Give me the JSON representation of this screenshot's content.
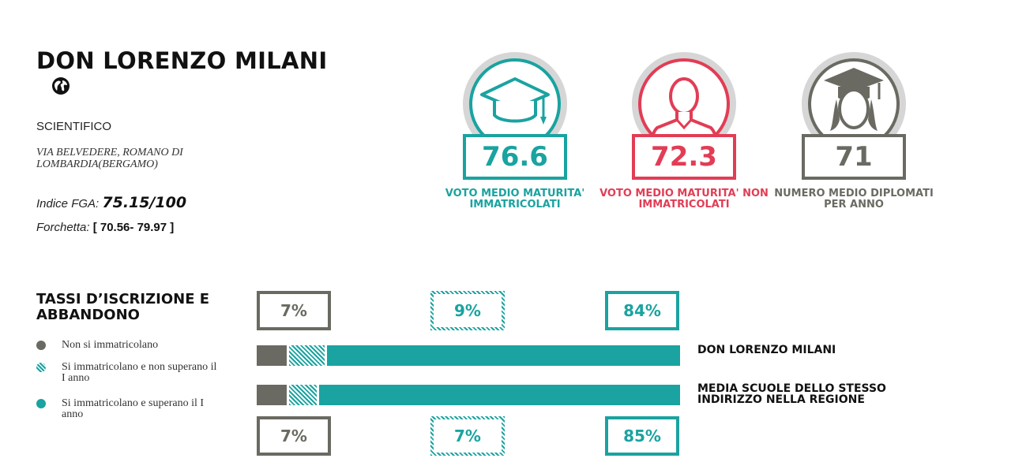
{
  "school": {
    "name": "DON LORENZO MILANI",
    "type": "SCIENTIFICO",
    "address": "VIA BELVEDERE, ROMANO DI LOMBARDIA(BERGAMO)",
    "fga_label": "Indice FGA:",
    "fga_value": "75.15/100",
    "fork_label": "Forchetta:",
    "fork_value": "[ 70.56- 79.97 ]"
  },
  "icons": {
    "website": "globe-icon"
  },
  "stats": [
    {
      "value": "76.6",
      "label": "VOTO MEDIO MATURITA' IMMATRICOLATI",
      "color": "#1aa3a0",
      "icon": "graduation-cap-icon"
    },
    {
      "value": "72.3",
      "label": "VOTO MEDIO MATURITA' NON IMMATRICOLATI",
      "color": "#e23d55",
      "icon": "person-icon"
    },
    {
      "value": "71",
      "label": "NUMERO MEDIO DIPLOMATI PER ANNO",
      "color": "#6b6a62",
      "icon": "graduate-person-icon"
    }
  ],
  "section": {
    "title": "TASSI D’ISCRIZIONE E ABBANDONO",
    "legend": [
      {
        "label": "Non si immatricolano",
        "color": "#6b6a62",
        "style": "solid"
      },
      {
        "label": "Si immatricolano e non superano il I anno",
        "color": "#1aa3a0",
        "style": "hatched"
      },
      {
        "label": "Si immatricolano e superano il I anno",
        "color": "#1aa3a0",
        "style": "solid"
      }
    ]
  },
  "chart_data": {
    "type": "bar",
    "orientation": "horizontal-stacked",
    "categories": [
      "DON LORENZO MILANI",
      "MEDIA SCUOLE DELLO STESSO INDIRIZZO NELLA REGIONE"
    ],
    "series": [
      {
        "name": "Non si immatricolano",
        "values": [
          7,
          7
        ],
        "labels": [
          "7%",
          "7%"
        ],
        "color": "#6b6a62"
      },
      {
        "name": "Si immatricolano e non superano il I anno",
        "values": [
          9,
          7
        ],
        "labels": [
          "9%",
          "7%"
        ],
        "color": "#1aa3a0",
        "pattern": "hatched"
      },
      {
        "name": "Si immatricolano e superano il I anno",
        "values": [
          84,
          85
        ],
        "labels": [
          "84%",
          "85%"
        ],
        "color": "#1aa3a0"
      }
    ],
    "xlim": [
      0,
      100
    ],
    "grid": false
  }
}
